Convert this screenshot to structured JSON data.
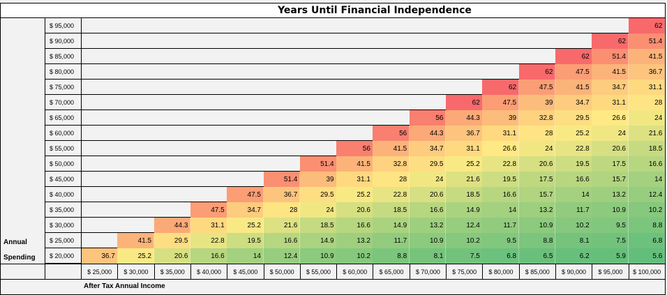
{
  "title": "Years Until Financial Independence",
  "y_axis_title": [
    "Annual",
    "Spending"
  ],
  "x_axis_title": "After Tax Annual Income",
  "row_labels": [
    "$ 95,000",
    "$ 90,000",
    "$ 85,000",
    "$ 80,000",
    "$ 75,000",
    "$ 70,000",
    "$ 65,000",
    "$ 60,000",
    "$ 55,000",
    "$ 50,000",
    "$ 45,000",
    "$ 40,000",
    "$ 35,000",
    "$ 30,000",
    "$ 25,000",
    "$ 20,000"
  ],
  "col_labels": [
    "$ 25,000",
    "$ 30,000",
    "$ 35,000",
    "$ 40,000",
    "$ 45,000",
    "$ 50,000",
    "$ 55,000",
    "$ 60,000",
    "$ 65,000",
    "$ 70,000",
    "$ 75,000",
    "$ 80,000",
    "$ 85,000",
    "$ 90,000",
    "$ 95,000",
    "$ 100,000"
  ],
  "chart_data": {
    "type": "heatmap",
    "title": "Years Until Financial Independence",
    "ylabel": "Annual Spending",
    "xlabel": "After Tax Annual Income",
    "y_categories": [
      "$ 95,000",
      "$ 90,000",
      "$ 85,000",
      "$ 80,000",
      "$ 75,000",
      "$ 70,000",
      "$ 65,000",
      "$ 60,000",
      "$ 55,000",
      "$ 50,000",
      "$ 45,000",
      "$ 40,000",
      "$ 35,000",
      "$ 30,000",
      "$ 25,000",
      "$ 20,000"
    ],
    "x_categories": [
      "$ 25,000",
      "$ 30,000",
      "$ 35,000",
      "$ 40,000",
      "$ 45,000",
      "$ 50,000",
      "$ 55,000",
      "$ 60,000",
      "$ 65,000",
      "$ 70,000",
      "$ 75,000",
      "$ 80,000",
      "$ 85,000",
      "$ 90,000",
      "$ 95,000",
      "$ 100,000"
    ],
    "values": [
      [
        null,
        null,
        null,
        null,
        null,
        null,
        null,
        null,
        null,
        null,
        null,
        null,
        null,
        null,
        null,
        62
      ],
      [
        null,
        null,
        null,
        null,
        null,
        null,
        null,
        null,
        null,
        null,
        null,
        null,
        null,
        null,
        62,
        51.4
      ],
      [
        null,
        null,
        null,
        null,
        null,
        null,
        null,
        null,
        null,
        null,
        null,
        null,
        null,
        62,
        51.4,
        41.5
      ],
      [
        null,
        null,
        null,
        null,
        null,
        null,
        null,
        null,
        null,
        null,
        null,
        null,
        62,
        47.5,
        41.5,
        36.7
      ],
      [
        null,
        null,
        null,
        null,
        null,
        null,
        null,
        null,
        null,
        null,
        null,
        62,
        47.5,
        41.5,
        34.7,
        31.1
      ],
      [
        null,
        null,
        null,
        null,
        null,
        null,
        null,
        null,
        null,
        null,
        62,
        47.5,
        39,
        34.7,
        31.1,
        28
      ],
      [
        null,
        null,
        null,
        null,
        null,
        null,
        null,
        null,
        null,
        56,
        44.3,
        39,
        32.8,
        29.5,
        26.6,
        24
      ],
      [
        null,
        null,
        null,
        null,
        null,
        null,
        null,
        null,
        56,
        44.3,
        36.7,
        31.1,
        28,
        25.2,
        24,
        21.6
      ],
      [
        null,
        null,
        null,
        null,
        null,
        null,
        null,
        56,
        41.5,
        34.7,
        31.1,
        26.6,
        24,
        22.8,
        20.6,
        18.5
      ],
      [
        null,
        null,
        null,
        null,
        null,
        null,
        51.4,
        41.5,
        32.8,
        29.5,
        25.2,
        22.8,
        20.6,
        19.5,
        17.5,
        16.6
      ],
      [
        null,
        null,
        null,
        null,
        null,
        51.4,
        39,
        31.1,
        28,
        24,
        21.6,
        19.5,
        17.5,
        16.6,
        15.7,
        14
      ],
      [
        null,
        null,
        null,
        null,
        47.5,
        36.7,
        29.5,
        25.2,
        22.8,
        20.6,
        18.5,
        16.6,
        15.7,
        14,
        13.2,
        12.4
      ],
      [
        null,
        null,
        null,
        47.5,
        34.7,
        28,
        24,
        20.6,
        18.5,
        16.6,
        14.9,
        14,
        13.2,
        11.7,
        10.9,
        10.2
      ],
      [
        null,
        null,
        44.3,
        31.1,
        25.2,
        21.6,
        18.5,
        16.6,
        14.9,
        13.2,
        12.4,
        11.7,
        10.9,
        10.2,
        9.5,
        8.8
      ],
      [
        null,
        41.5,
        29.5,
        22.8,
        19.5,
        16.6,
        14.9,
        13.2,
        11.7,
        10.9,
        10.2,
        9.5,
        8.8,
        8.1,
        7.5,
        6.8
      ],
      [
        36.7,
        25.2,
        20.6,
        16.6,
        14,
        12.4,
        10.9,
        10.2,
        8.8,
        8.1,
        7.5,
        6.8,
        6.5,
        6.2,
        5.9,
        5.6
      ]
    ],
    "color_scale": {
      "low": "#63be7b",
      "mid": "#ffeb84",
      "high": "#f8696b"
    }
  }
}
